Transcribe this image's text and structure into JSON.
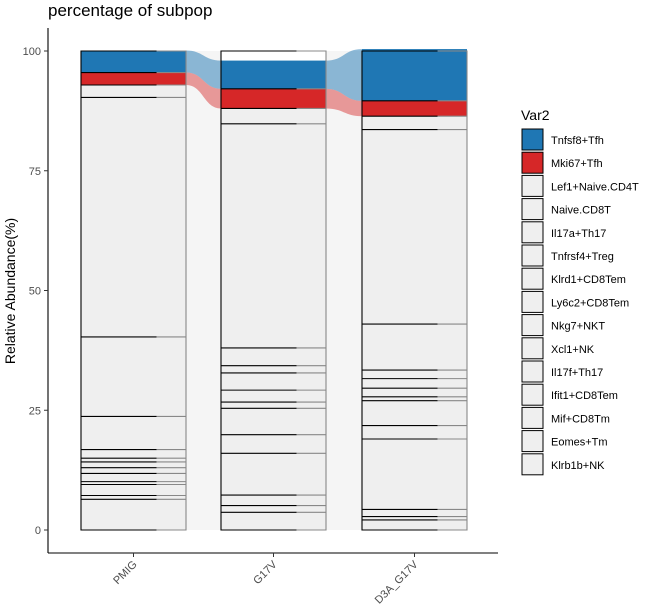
{
  "chart_data": {
    "type": "bar",
    "subtype": "stacked-alluvial",
    "title": "percentage of subpop",
    "xlabel": "",
    "ylabel": "Relative Abundance(%)",
    "ylim": [
      0,
      100
    ],
    "yticks": [
      "0",
      "25",
      "50",
      "75",
      "100"
    ],
    "categories": [
      "PMIG",
      "G17V",
      "D3A_G17V"
    ],
    "legend_title": "Var2",
    "legend_position": "right",
    "grid": false,
    "highlighted": [
      "Tnfsf8+Tfh",
      "Mki67+Tfh"
    ],
    "colors": {
      "Tnfsf8+Tfh": "#1f77b4",
      "Mki67+Tfh": "#d62728",
      "other": "#efefef",
      "flow_background": "#f5f5f5"
    },
    "series": [
      {
        "name": "Tnfsf8+Tfh",
        "values": [
          4.6,
          5.9,
          10.8
        ]
      },
      {
        "name": "Mki67+Tfh",
        "values": [
          2.6,
          4.1,
          3.2
        ]
      },
      {
        "name": "Lef1+Naive.CD4T",
        "values": [
          2.6,
          3.2,
          2.8
        ]
      },
      {
        "name": "Naive.CD8T",
        "values": [
          50.0,
          46.8,
          40.6
        ]
      },
      {
        "name": "Il17a+Th17",
        "values": [
          16.6,
          3.7,
          9.6
        ]
      },
      {
        "name": "Tnfrsf4+Treg",
        "values": [
          6.9,
          1.5,
          1.8
        ]
      },
      {
        "name": "Klrd1+CD8Tem",
        "values": [
          1.8,
          3.6,
          2.0
        ]
      },
      {
        "name": "Ly6c2+CD8Tem",
        "values": [
          0.8,
          2.5,
          1.8
        ]
      },
      {
        "name": "Nkg7+NKT",
        "values": [
          1.2,
          1.3,
          0.8
        ]
      },
      {
        "name": "Xcl1+NK",
        "values": [
          1.2,
          5.5,
          5.2
        ]
      },
      {
        "name": "Il17f+Th17",
        "values": [
          1.7,
          3.9,
          2.8
        ]
      },
      {
        "name": "Ifit1+CD8Tem",
        "values": [
          0.6,
          8.7,
          14.7
        ]
      },
      {
        "name": "Mif+CD8Tm",
        "values": [
          2.3,
          2.2,
          1.5
        ]
      },
      {
        "name": "Eomes+Tm",
        "values": [
          0.8,
          1.4,
          0.7
        ]
      },
      {
        "name": "Klrb1b+NK",
        "values": [
          6.4,
          3.7,
          2.1
        ]
      }
    ]
  }
}
